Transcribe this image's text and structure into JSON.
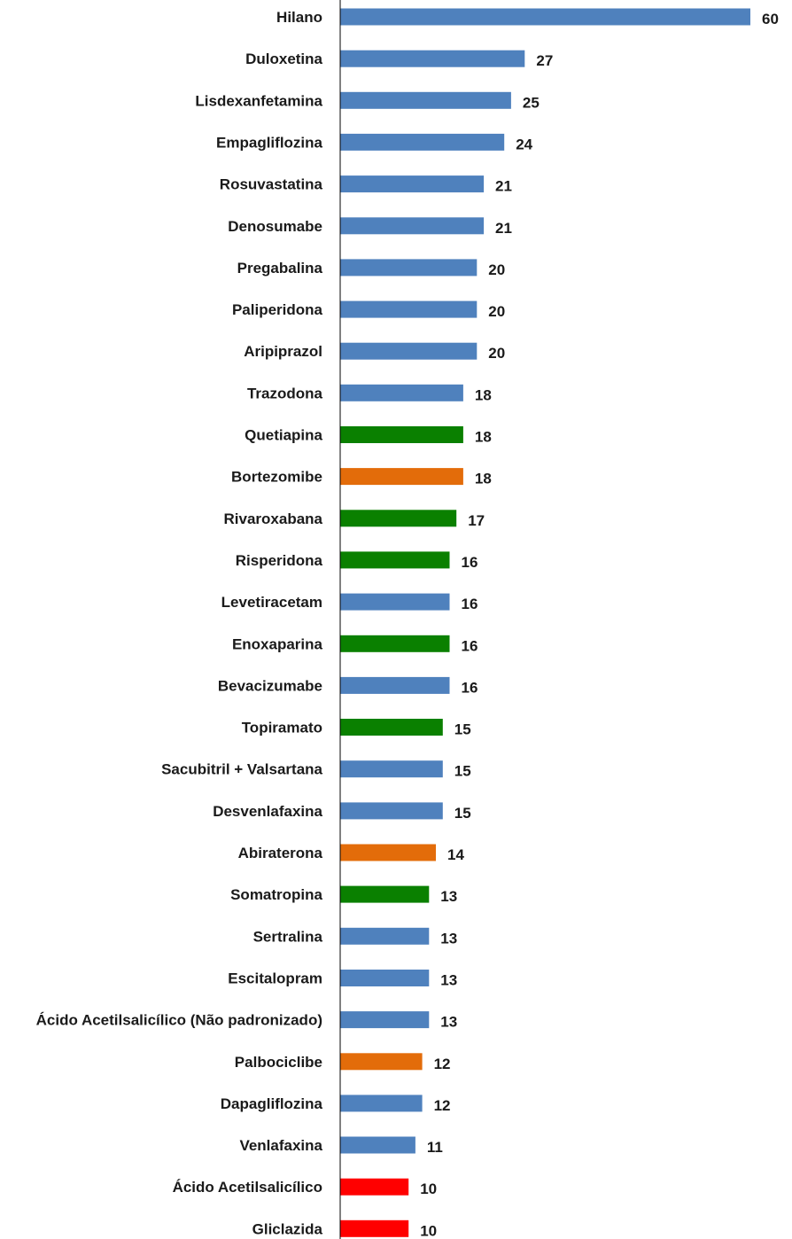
{
  "chart_data": {
    "type": "bar",
    "orientation": "horizontal",
    "title": "",
    "xlabel": "",
    "ylabel": "",
    "grid": false,
    "legend": "none",
    "xlim": [
      0,
      60
    ],
    "colors": {
      "blue": "#4f81bd",
      "green": "#0a8000",
      "orange": "#e36c0a",
      "red": "#ff0000",
      "axis": "#000000"
    },
    "categories": [
      "Hilano",
      "Duloxetina",
      "Lisdexanfetamina",
      "Empagliflozina",
      "Rosuvastatina",
      "Denosumabe",
      "Pregabalina",
      "Paliperidona",
      "Aripiprazol",
      "Trazodona",
      "Quetiapina",
      "Bortezomibe",
      "Rivaroxabana",
      "Risperidona",
      "Levetiracetam",
      "Enoxaparina",
      "Bevacizumabe",
      "Topiramato",
      "Sacubitril + Valsartana",
      "Desvenlafaxina",
      "Abiraterona",
      "Somatropina",
      "Sertralina",
      "Escitalopram",
      "Ácido Acetilsalicílico (Não padronizado)",
      "Palbociclibe",
      "Dapagliflozina",
      "Venlafaxina",
      "Ácido Acetilsalicílico",
      "Gliclazida"
    ],
    "values": [
      60,
      27,
      25,
      24,
      21,
      21,
      20,
      20,
      20,
      18,
      18,
      18,
      17,
      16,
      16,
      16,
      16,
      15,
      15,
      15,
      14,
      13,
      13,
      13,
      13,
      12,
      12,
      11,
      10,
      10
    ],
    "value_labels": [
      "60",
      "27",
      "25",
      "24",
      "21",
      "21",
      "20",
      "20",
      "20",
      "18",
      "18",
      "18",
      "17",
      "16",
      "16",
      "16",
      "16",
      "15",
      "15",
      "15",
      "14",
      "13",
      "13",
      "13",
      "13",
      "12",
      "12",
      "11",
      "10",
      "10"
    ],
    "bar_colors": [
      "blue",
      "blue",
      "blue",
      "blue",
      "blue",
      "blue",
      "blue",
      "blue",
      "blue",
      "blue",
      "green",
      "orange",
      "green",
      "green",
      "blue",
      "green",
      "blue",
      "green",
      "blue",
      "blue",
      "orange",
      "green",
      "blue",
      "blue",
      "blue",
      "orange",
      "blue",
      "blue",
      "red",
      "red"
    ]
  }
}
